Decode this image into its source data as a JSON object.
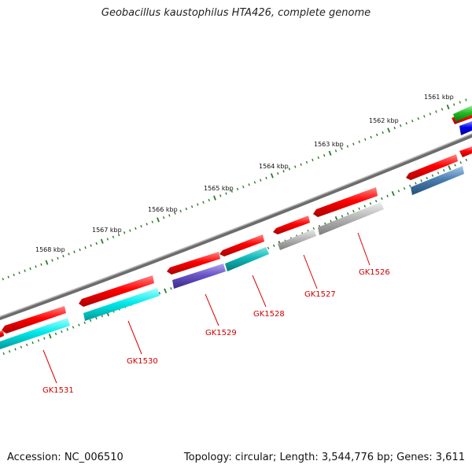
{
  "title": "Geobacillus kaustophilus HTA426, complete genome",
  "footer": {
    "accession": "Accession: NC_006510",
    "summary": "Topology: circular; Length: 3,544,776 bp; Genes: 3,611"
  },
  "scale_labels": [
    "1561 kbp",
    "1562 kbp",
    "1563 kbp",
    "1564 kbp",
    "1565 kbp",
    "1566 kbp",
    "1567 kbp",
    "1568 kbp"
  ],
  "gene_labels": [
    "GK1526",
    "GK1527",
    "GK1528",
    "GK1529",
    "GK1530",
    "GK1531"
  ],
  "colors": {
    "red": "#ff0000",
    "cyan": "#00e5e5",
    "teal": "#00b5b5",
    "purple": "#6a55c8",
    "gray": "#b4b4b4",
    "steelblue": "#4a7fb0",
    "green": "#22bb22",
    "blue": "#0000ee",
    "backbone": "#777777",
    "tick": "#2a7a2a",
    "label": "#cc0000"
  }
}
